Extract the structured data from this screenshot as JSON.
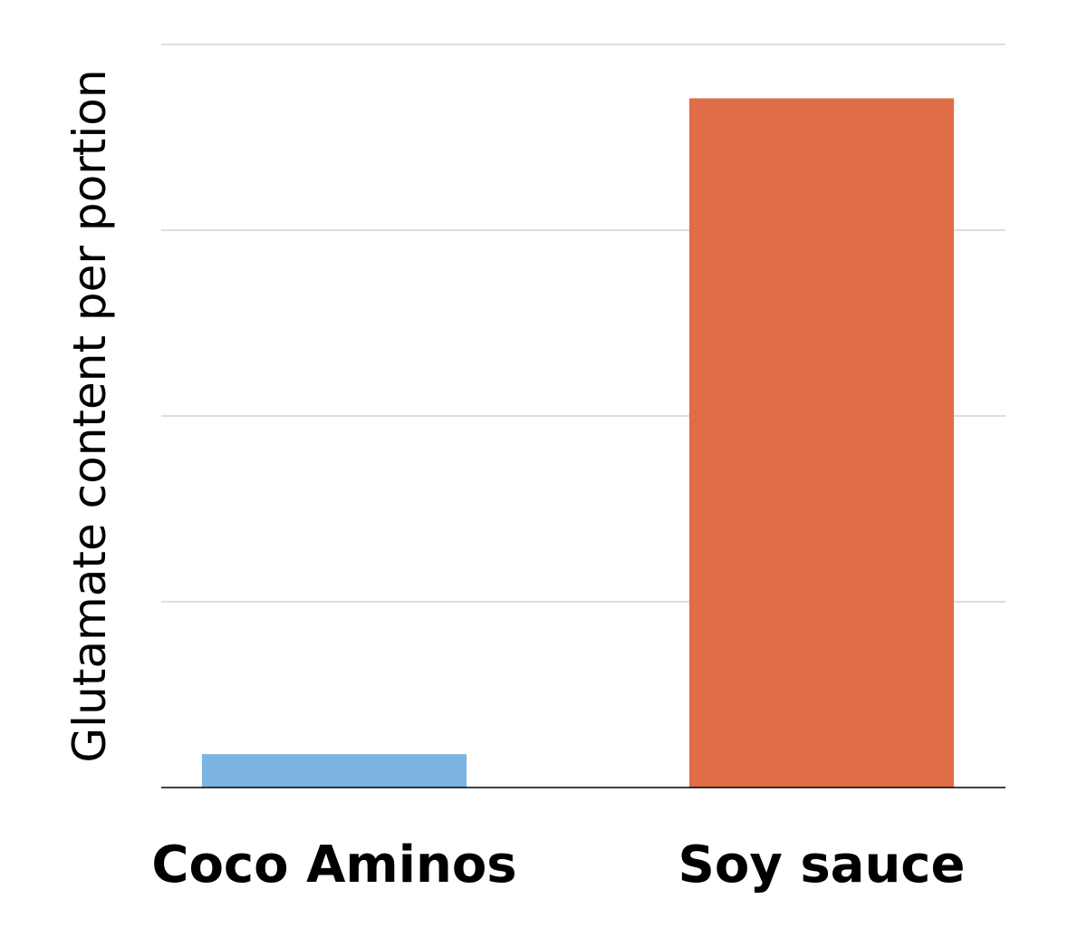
{
  "chart_data": {
    "type": "bar",
    "title": "",
    "xlabel": "",
    "ylabel": "Glutamate content per portion",
    "categories": [
      "Coco Aminos",
      "Soy sauce"
    ],
    "values": [
      0.18,
      3.71
    ],
    "colors": [
      "#7bb4e0",
      "#df6d48"
    ],
    "ylim": [
      0,
      4
    ],
    "yticks": [
      0,
      1,
      2,
      3,
      4
    ],
    "grid": true,
    "ytick_labels_shown": false
  }
}
